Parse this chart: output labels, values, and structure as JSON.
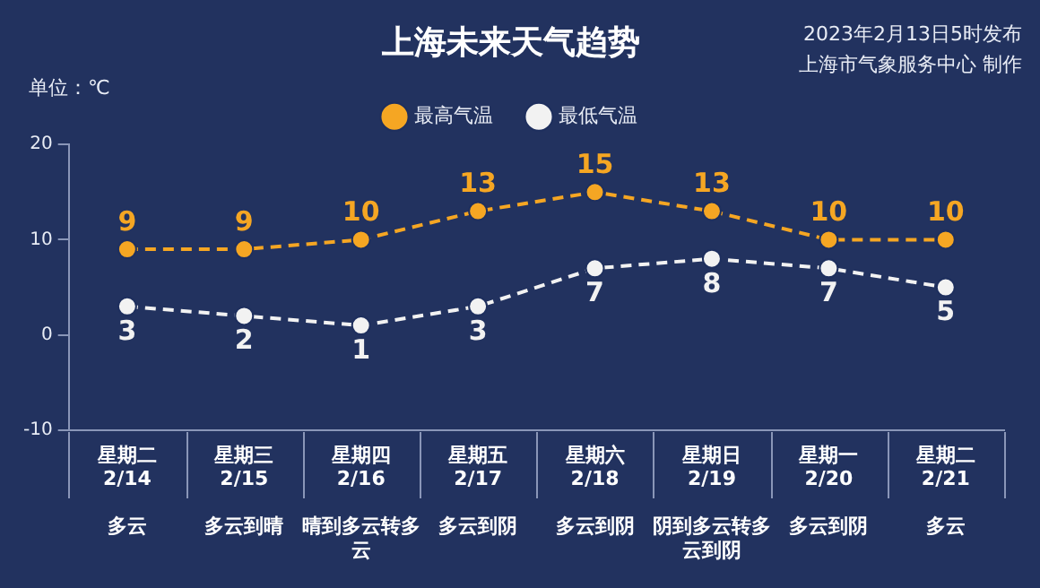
{
  "chart_data": {
    "type": "line",
    "title": "上海未来天气趋势",
    "ylabel": "单位：℃",
    "annotations": [
      "2023年2月13日5时发布",
      "上海市气象服务中心 制作"
    ],
    "categories": [
      "星期二\n2/14\n多云",
      "星期三\n2/15\n多云到晴",
      "星期四\n2/16\n晴到多云转多云",
      "星期五\n2/17\n多云到阴",
      "星期六\n2/18\n多云到阴",
      "星期日\n2/19\n阴到多云转多云到阴",
      "星期一\n2/20\n多云到阴",
      "星期二\n2/21\n多云"
    ],
    "series": [
      {
        "name": "最高气温",
        "color": "#f5a623",
        "values": [
          9,
          9,
          10,
          13,
          15,
          13,
          10,
          10
        ]
      },
      {
        "name": "最低气温",
        "color": "#f2f2f2",
        "values": [
          3,
          2,
          1,
          3,
          7,
          8,
          7,
          5
        ]
      }
    ],
    "ylim": [
      -10,
      20
    ],
    "yticks": [
      -10,
      0,
      10,
      20
    ],
    "grid": false,
    "legend": "top",
    "marker": "circle",
    "line_style": "dashed",
    "data_labels": true
  }
}
